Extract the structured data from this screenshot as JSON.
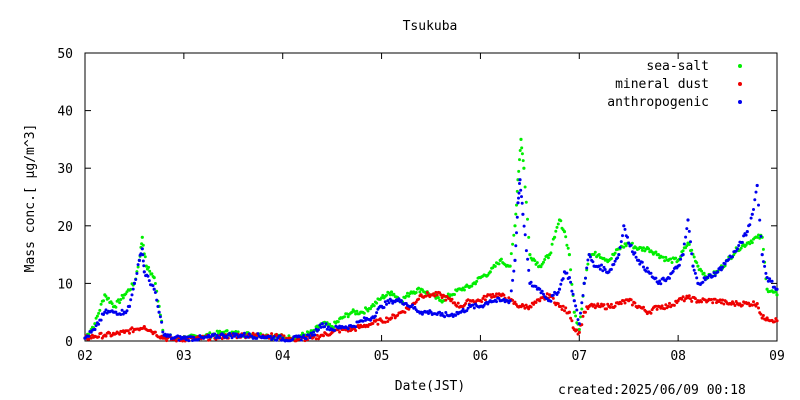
{
  "chart_data": {
    "type": "scatter",
    "title": "Tsukuba",
    "xlabel": "Date(JST)",
    "ylabel": "Mass conc.[ μg/m^3]",
    "ylim": [
      0,
      50
    ],
    "xlim": [
      2,
      9
    ],
    "x_ticks": [
      "02",
      "03",
      "04",
      "05",
      "06",
      "07",
      "08",
      "09"
    ],
    "y_ticks": [
      "0",
      "10",
      "20",
      "30",
      "40",
      "50"
    ],
    "legend_position": "top-right",
    "series": [
      {
        "name": "sea-salt",
        "color": "#00ee00",
        "points": [
          [
            2.0,
            0.5
          ],
          [
            2.1,
            3
          ],
          [
            2.2,
            8
          ],
          [
            2.3,
            6
          ],
          [
            2.4,
            8
          ],
          [
            2.5,
            10
          ],
          [
            2.55,
            14
          ],
          [
            2.58,
            18
          ],
          [
            2.62,
            13
          ],
          [
            2.7,
            11
          ],
          [
            2.75,
            6
          ],
          [
            2.8,
            1
          ],
          [
            2.9,
            0.5
          ],
          [
            3.0,
            0.5
          ],
          [
            3.2,
            0.8
          ],
          [
            3.4,
            1.5
          ],
          [
            3.6,
            1.2
          ],
          [
            3.8,
            1
          ],
          [
            3.95,
            0.8
          ],
          [
            4.1,
            0.5
          ],
          [
            4.3,
            1.5
          ],
          [
            4.4,
            3
          ],
          [
            4.5,
            2.5
          ],
          [
            4.6,
            4
          ],
          [
            4.7,
            5
          ],
          [
            4.8,
            5
          ],
          [
            4.9,
            6
          ],
          [
            5.0,
            7.5
          ],
          [
            5.1,
            8.5
          ],
          [
            5.2,
            7
          ],
          [
            5.3,
            8.5
          ],
          [
            5.4,
            9
          ],
          [
            5.5,
            8
          ],
          [
            5.6,
            7
          ],
          [
            5.7,
            8
          ],
          [
            5.8,
            9
          ],
          [
            5.9,
            9.5
          ],
          [
            6.0,
            11
          ],
          [
            6.1,
            12
          ],
          [
            6.2,
            14
          ],
          [
            6.3,
            13
          ],
          [
            6.35,
            20
          ],
          [
            6.38,
            28
          ],
          [
            6.41,
            35
          ],
          [
            6.44,
            30
          ],
          [
            6.5,
            15
          ],
          [
            6.6,
            13
          ],
          [
            6.7,
            15
          ],
          [
            6.75,
            18
          ],
          [
            6.8,
            21
          ],
          [
            6.85,
            19
          ],
          [
            6.9,
            15
          ],
          [
            6.95,
            5
          ],
          [
            7.0,
            2
          ],
          [
            7.05,
            10
          ],
          [
            7.1,
            15
          ],
          [
            7.2,
            15
          ],
          [
            7.3,
            14
          ],
          [
            7.4,
            16
          ],
          [
            7.5,
            17
          ],
          [
            7.6,
            16
          ],
          [
            7.7,
            16
          ],
          [
            7.8,
            15
          ],
          [
            7.9,
            14
          ],
          [
            8.0,
            14
          ],
          [
            8.1,
            17
          ],
          [
            8.2,
            13
          ],
          [
            8.3,
            11
          ],
          [
            8.4,
            12
          ],
          [
            8.5,
            14
          ],
          [
            8.6,
            16
          ],
          [
            8.7,
            17
          ],
          [
            8.8,
            18
          ],
          [
            8.85,
            18
          ],
          [
            8.9,
            9
          ],
          [
            9.0,
            8
          ]
        ]
      },
      {
        "name": "mineral dust",
        "color": "#ee0000",
        "points": [
          [
            2.0,
            0.5
          ],
          [
            2.1,
            0.8
          ],
          [
            2.2,
            1
          ],
          [
            2.3,
            1.2
          ],
          [
            2.4,
            1.5
          ],
          [
            2.5,
            2
          ],
          [
            2.6,
            2.5
          ],
          [
            2.7,
            1.5
          ],
          [
            2.8,
            0.5
          ],
          [
            2.9,
            0.3
          ],
          [
            3.0,
            0.3
          ],
          [
            3.2,
            0.5
          ],
          [
            3.4,
            0.8
          ],
          [
            3.6,
            1
          ],
          [
            3.8,
            1
          ],
          [
            3.95,
            0.8
          ],
          [
            4.1,
            0.3
          ],
          [
            4.3,
            0.5
          ],
          [
            4.4,
            1
          ],
          [
            4.5,
            1.5
          ],
          [
            4.6,
            2
          ],
          [
            4.7,
            2
          ],
          [
            4.8,
            2.5
          ],
          [
            4.9,
            3
          ],
          [
            5.0,
            3.5
          ],
          [
            5.1,
            4
          ],
          [
            5.2,
            5
          ],
          [
            5.3,
            6
          ],
          [
            5.4,
            8
          ],
          [
            5.5,
            8
          ],
          [
            5.6,
            8
          ],
          [
            5.7,
            7
          ],
          [
            5.8,
            6
          ],
          [
            5.9,
            7
          ],
          [
            6.0,
            7
          ],
          [
            6.1,
            8
          ],
          [
            6.2,
            8
          ],
          [
            6.3,
            7
          ],
          [
            6.4,
            6
          ],
          [
            6.5,
            6
          ],
          [
            6.6,
            7
          ],
          [
            6.7,
            8
          ],
          [
            6.8,
            6
          ],
          [
            6.9,
            5
          ],
          [
            6.95,
            2
          ],
          [
            7.0,
            1.5
          ],
          [
            7.05,
            5
          ],
          [
            7.1,
            6
          ],
          [
            7.2,
            6
          ],
          [
            7.3,
            6
          ],
          [
            7.4,
            6.5
          ],
          [
            7.5,
            7
          ],
          [
            7.6,
            6
          ],
          [
            7.7,
            5
          ],
          [
            7.8,
            6
          ],
          [
            7.9,
            6
          ],
          [
            8.0,
            7
          ],
          [
            8.1,
            7.5
          ],
          [
            8.2,
            7
          ],
          [
            8.3,
            7
          ],
          [
            8.4,
            7
          ],
          [
            8.5,
            6.5
          ],
          [
            8.6,
            6.5
          ],
          [
            8.7,
            6.5
          ],
          [
            8.8,
            6.5
          ],
          [
            8.85,
            4
          ],
          [
            8.9,
            4
          ],
          [
            9.0,
            3.5
          ]
        ]
      },
      {
        "name": "anthropogenic",
        "color": "#0000ee",
        "points": [
          [
            2.0,
            0.5
          ],
          [
            2.1,
            2
          ],
          [
            2.2,
            5
          ],
          [
            2.3,
            5
          ],
          [
            2.4,
            5
          ],
          [
            2.45,
            6
          ],
          [
            2.5,
            10
          ],
          [
            2.55,
            14
          ],
          [
            2.58,
            16
          ],
          [
            2.6,
            12
          ],
          [
            2.7,
            9
          ],
          [
            2.75,
            5
          ],
          [
            2.8,
            1
          ],
          [
            2.9,
            0.5
          ],
          [
            3.0,
            0.5
          ],
          [
            3.2,
            0.5
          ],
          [
            3.4,
            1
          ],
          [
            3.6,
            1
          ],
          [
            3.8,
            0.8
          ],
          [
            3.95,
            0.5
          ],
          [
            4.1,
            0.3
          ],
          [
            4.3,
            1
          ],
          [
            4.4,
            3
          ],
          [
            4.5,
            2
          ],
          [
            4.6,
            2.5
          ],
          [
            4.7,
            2.5
          ],
          [
            4.8,
            3.5
          ],
          [
            4.9,
            4
          ],
          [
            5.0,
            6
          ],
          [
            5.1,
            7
          ],
          [
            5.2,
            7
          ],
          [
            5.3,
            6
          ],
          [
            5.4,
            5
          ],
          [
            5.5,
            5
          ],
          [
            5.6,
            4.5
          ],
          [
            5.7,
            4.5
          ],
          [
            5.8,
            5
          ],
          [
            5.9,
            6
          ],
          [
            6.0,
            6
          ],
          [
            6.1,
            7
          ],
          [
            6.2,
            7
          ],
          [
            6.3,
            7
          ],
          [
            6.35,
            14
          ],
          [
            6.38,
            24
          ],
          [
            6.4,
            28
          ],
          [
            6.43,
            22
          ],
          [
            6.5,
            10
          ],
          [
            6.6,
            9
          ],
          [
            6.7,
            7
          ],
          [
            6.8,
            9
          ],
          [
            6.85,
            12
          ],
          [
            6.9,
            11
          ],
          [
            6.95,
            7
          ],
          [
            7.0,
            3
          ],
          [
            7.05,
            10
          ],
          [
            7.1,
            15
          ],
          [
            7.15,
            13
          ],
          [
            7.2,
            13
          ],
          [
            7.3,
            12
          ],
          [
            7.4,
            15
          ],
          [
            7.45,
            20
          ],
          [
            7.5,
            17
          ],
          [
            7.6,
            14
          ],
          [
            7.7,
            12
          ],
          [
            7.8,
            10
          ],
          [
            7.9,
            11
          ],
          [
            8.0,
            13
          ],
          [
            8.05,
            15
          ],
          [
            8.1,
            21
          ],
          [
            8.15,
            13
          ],
          [
            8.2,
            10
          ],
          [
            8.3,
            11
          ],
          [
            8.4,
            12
          ],
          [
            8.5,
            14
          ],
          [
            8.6,
            16
          ],
          [
            8.7,
            19
          ],
          [
            8.75,
            22
          ],
          [
            8.8,
            27
          ],
          [
            8.85,
            15
          ],
          [
            8.9,
            11
          ],
          [
            9.0,
            9
          ]
        ]
      }
    ]
  },
  "footer": {
    "created": "created:2025/06/09 00:18"
  }
}
